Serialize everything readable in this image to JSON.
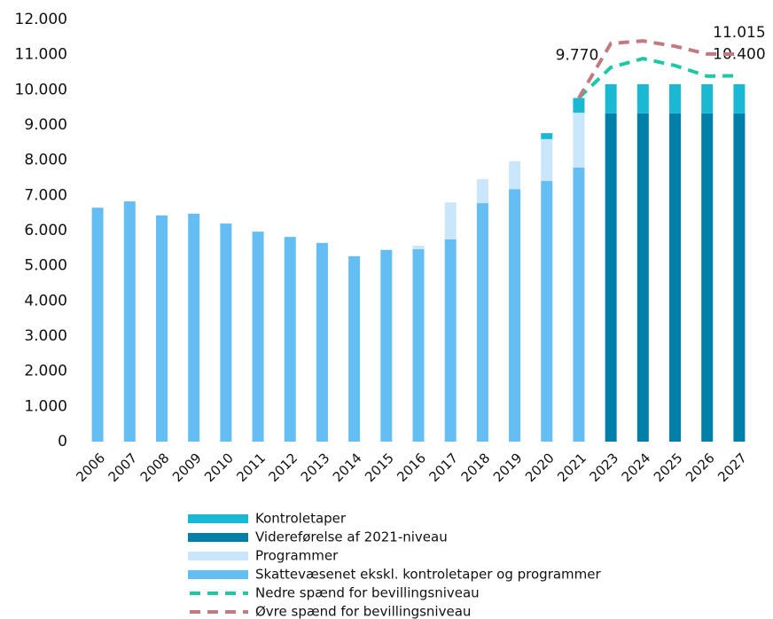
{
  "chart_data": {
    "type": "bar",
    "categories": [
      "2006",
      "2007",
      "2008",
      "2009",
      "2010",
      "2011",
      "2012",
      "2013",
      "2014",
      "2015",
      "2016",
      "2017",
      "2018",
      "2019",
      "2020",
      "2021",
      "2023",
      "2024",
      "2025",
      "2026",
      "2027"
    ],
    "ylim": [
      0,
      12000
    ],
    "yticks": [
      0,
      {
        "value": 1000,
        "label": "1.000"
      },
      {
        "value": 2000,
        "label": "2.000"
      },
      {
        "value": 3000,
        "label": "3.000"
      },
      {
        "value": 4000,
        "label": "4.000"
      },
      {
        "value": 5000,
        "label": "5.000"
      },
      {
        "value": 6000,
        "label": "6.000"
      },
      {
        "value": 7000,
        "label": "7.000"
      },
      {
        "value": 8000,
        "label": "8.000"
      },
      {
        "value": 9000,
        "label": "9.000"
      },
      {
        "value": 10000,
        "label": "10.000"
      },
      {
        "value": 11000,
        "label": "11.000"
      },
      {
        "value": 12000,
        "label": "12.000"
      }
    ],
    "series": [
      {
        "name": "Skattevæsenet ekskl. kontroletaper og programmer",
        "color": "#64bef4",
        "kind": "bar",
        "values": [
          6650,
          6830,
          6430,
          6480,
          6200,
          5970,
          5820,
          5650,
          5270,
          5450,
          5470,
          5750,
          6780,
          7180,
          7410,
          7790,
          null,
          null,
          null,
          null,
          null
        ]
      },
      {
        "name": "Programmer",
        "color": "#c9e6fb",
        "kind": "bar",
        "values": [
          null,
          null,
          null,
          null,
          null,
          null,
          null,
          null,
          null,
          null,
          100,
          1050,
          680,
          790,
          1190,
          1560,
          null,
          null,
          null,
          null,
          null
        ]
      },
      {
        "name": "Videreførelse af 2021-niveau",
        "color": "#007fa8",
        "kind": "bar",
        "values": [
          null,
          null,
          null,
          null,
          null,
          null,
          null,
          null,
          null,
          null,
          null,
          null,
          null,
          null,
          null,
          null,
          9330,
          9330,
          9330,
          9330,
          9330
        ]
      },
      {
        "name": "Kontroletaper",
        "color": "#1ab8d2",
        "kind": "bar",
        "values": [
          null,
          null,
          null,
          null,
          null,
          null,
          null,
          null,
          null,
          null,
          null,
          null,
          null,
          null,
          170,
          420,
          830,
          830,
          830,
          830,
          830
        ]
      },
      {
        "name": "Nedre spænd for bevillingsniveau",
        "color": "#1ec8a5",
        "kind": "line",
        "values": [
          null,
          null,
          null,
          null,
          null,
          null,
          null,
          null,
          null,
          null,
          null,
          null,
          null,
          null,
          null,
          9770,
          10640,
          10890,
          10690,
          10390,
          10400
        ],
        "value_labels": [
          null,
          null,
          null,
          null,
          null,
          null,
          null,
          null,
          null,
          null,
          null,
          null,
          null,
          null,
          null,
          null,
          null,
          null,
          null,
          null,
          "10.400"
        ]
      },
      {
        "name": "Øvre spænd for bevillingsniveau",
        "color": "#c07a80",
        "kind": "line",
        "values": [
          null,
          null,
          null,
          null,
          null,
          null,
          null,
          null,
          null,
          null,
          null,
          null,
          null,
          null,
          null,
          9770,
          11320,
          11390,
          11240,
          11020,
          11015
        ],
        "value_labels": [
          null,
          null,
          null,
          null,
          null,
          null,
          null,
          null,
          null,
          null,
          null,
          null,
          null,
          null,
          null,
          "9.770",
          null,
          null,
          null,
          null,
          "11.015"
        ]
      }
    ]
  }
}
